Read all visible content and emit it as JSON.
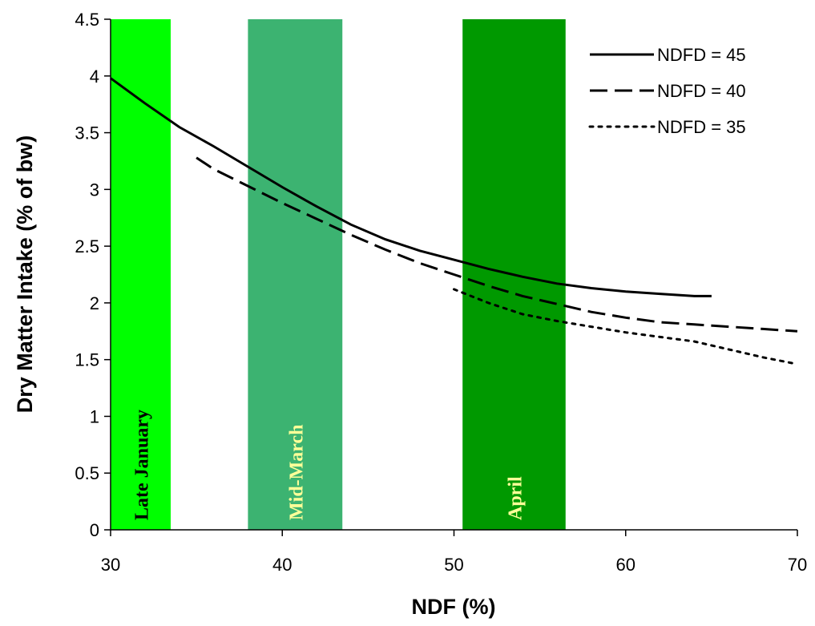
{
  "chart_data": {
    "type": "line",
    "xlabel": "NDF (%)",
    "ylabel": "Dry Matter Intake (% of bw)",
    "xlim": [
      30,
      70
    ],
    "ylim": [
      0,
      4.5
    ],
    "x_ticks": [
      "30",
      "40",
      "50",
      "60",
      "70"
    ],
    "y_ticks": [
      "0",
      "0.5",
      "1",
      "1.5",
      "2",
      "2.5",
      "3",
      "3.5",
      "4",
      "4.5"
    ],
    "legend_position": "top-right",
    "bands": [
      {
        "label": "Late January",
        "x_start": 30,
        "x_end": 33.5,
        "color": "#00ff00",
        "label_color": "#000000"
      },
      {
        "label": "Mid-March",
        "x_start": 38,
        "x_end": 43.5,
        "color": "#3cb371",
        "label_color": "#ffff99"
      },
      {
        "label": "April",
        "x_start": 50.5,
        "x_end": 56.5,
        "color": "#009900",
        "label_color": "#ffff99"
      }
    ],
    "series": [
      {
        "name": "NDFD = 45",
        "dash": "solid",
        "points": [
          [
            30,
            3.98
          ],
          [
            32,
            3.76
          ],
          [
            34,
            3.55
          ],
          [
            36,
            3.38
          ],
          [
            38,
            3.2
          ],
          [
            40,
            3.02
          ],
          [
            42,
            2.85
          ],
          [
            44,
            2.69
          ],
          [
            46,
            2.56
          ],
          [
            48,
            2.46
          ],
          [
            50,
            2.38
          ],
          [
            52,
            2.3
          ],
          [
            54,
            2.23
          ],
          [
            56,
            2.17
          ],
          [
            58,
            2.13
          ],
          [
            60,
            2.1
          ],
          [
            62,
            2.08
          ],
          [
            64,
            2.06
          ],
          [
            65,
            2.06
          ]
        ]
      },
      {
        "name": "NDFD = 40",
        "dash": "long-dash",
        "points": [
          [
            35,
            3.28
          ],
          [
            36,
            3.18
          ],
          [
            38,
            3.03
          ],
          [
            40,
            2.88
          ],
          [
            42,
            2.74
          ],
          [
            44,
            2.6
          ],
          [
            46,
            2.47
          ],
          [
            48,
            2.35
          ],
          [
            50,
            2.25
          ],
          [
            52,
            2.15
          ],
          [
            54,
            2.06
          ],
          [
            56,
            1.99
          ],
          [
            58,
            1.92
          ],
          [
            60,
            1.87
          ],
          [
            62,
            1.83
          ],
          [
            64,
            1.81
          ],
          [
            66,
            1.79
          ],
          [
            68,
            1.77
          ],
          [
            70,
            1.75
          ]
        ]
      },
      {
        "name": "NDFD = 35",
        "dash": "dotted",
        "points": [
          [
            50,
            2.12
          ],
          [
            52,
            2.0
          ],
          [
            54,
            1.9
          ],
          [
            56,
            1.84
          ],
          [
            58,
            1.79
          ],
          [
            60,
            1.74
          ],
          [
            62,
            1.7
          ],
          [
            64,
            1.66
          ],
          [
            66,
            1.59
          ],
          [
            68,
            1.52
          ],
          [
            70,
            1.46
          ]
        ]
      }
    ]
  }
}
